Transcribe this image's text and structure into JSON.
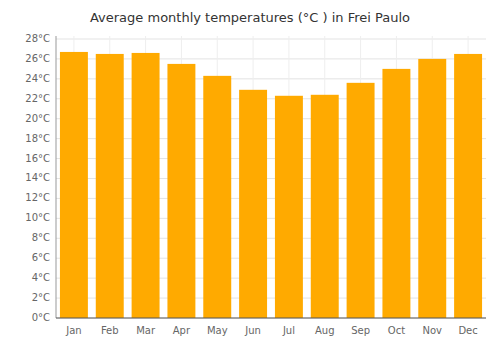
{
  "chart_data": {
    "type": "bar",
    "title": "Average monthly temperatures (°C ) in Frei Paulo",
    "categories": [
      "Jan",
      "Feb",
      "Mar",
      "Apr",
      "May",
      "Jun",
      "Jul",
      "Aug",
      "Sep",
      "Oct",
      "Nov",
      "Dec"
    ],
    "values": [
      26.7,
      26.5,
      26.6,
      25.5,
      24.3,
      22.9,
      22.3,
      22.4,
      23.6,
      25.0,
      26.0,
      26.5
    ],
    "color": "#FFAA00",
    "ylim": [
      0,
      28.3
    ],
    "yticks": [
      {
        "value": 0,
        "label": "0°C"
      },
      {
        "value": 2,
        "label": "2°C"
      },
      {
        "value": 4,
        "label": "4°C"
      },
      {
        "value": 6,
        "label": "6°C"
      },
      {
        "value": 8,
        "label": "8°C"
      },
      {
        "value": 10,
        "label": "10°C"
      },
      {
        "value": 12,
        "label": "12°C"
      },
      {
        "value": 14,
        "label": "14°C"
      },
      {
        "value": 16,
        "label": "16°C"
      },
      {
        "value": 18,
        "label": "18°C"
      },
      {
        "value": 20,
        "label": "20°C"
      },
      {
        "value": 22,
        "label": "22°C"
      },
      {
        "value": 24,
        "label": "24°C"
      },
      {
        "value": 26,
        "label": "26°C"
      },
      {
        "value": 28,
        "label": "28°C"
      }
    ],
    "grid": true
  }
}
